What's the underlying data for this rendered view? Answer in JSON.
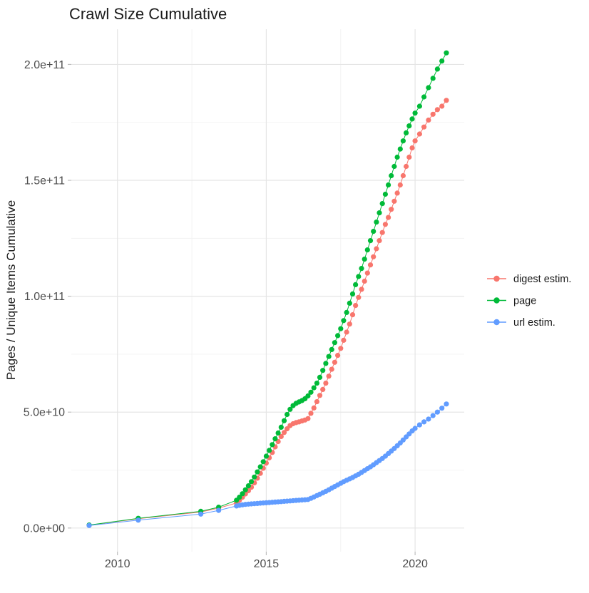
{
  "chart_data": {
    "type": "scatter",
    "title": "Crawl Size Cumulative",
    "xlabel": "",
    "ylabel": "Pages / Unique Items Cumulative",
    "x_ticks": [
      2010,
      2015,
      2020
    ],
    "x_tick_labels": [
      "2010",
      "2015",
      "2020"
    ],
    "x_minor_ticks": [
      2012.5,
      2017.5
    ],
    "y_ticks": [
      0,
      50000000000.0,
      100000000000.0,
      150000000000.0,
      200000000000.0
    ],
    "y_tick_labels": [
      "0.0e+00",
      "5.0e+10",
      "1.0e+11",
      "1.5e+11",
      "2.0e+11"
    ],
    "y_minor_ticks": [
      25000000000.0,
      75000000000.0,
      125000000000.0,
      175000000000.0
    ],
    "xlim": [
      2008.45,
      2021.65
    ],
    "ylim": [
      -10200000000.0,
      215200000000.0
    ],
    "grid": true,
    "legend_position": "right",
    "colors": {
      "grid_major": "#E5E5E5",
      "grid_minor": "#F1F1F1",
      "axis_text": "#4D4D4D",
      "tick_mark": "#BEBEBE",
      "title_text": "#1A1A1A"
    },
    "series": [
      {
        "name": "digest estim.",
        "color": "#F8766D",
        "points": [
          [
            2009.05,
            1200000000.0
          ],
          [
            2010.7,
            4000000000.0
          ],
          [
            2012.8,
            6900000000.0
          ],
          [
            2013.4,
            8600000000.0
          ],
          [
            2014.0,
            10800000000.0
          ],
          [
            2014.1,
            12000000000.0
          ],
          [
            2014.2,
            13300000000.0
          ],
          [
            2014.3,
            14700000000.0
          ],
          [
            2014.4,
            16100000000.0
          ],
          [
            2014.5,
            17600000000.0
          ],
          [
            2014.6,
            19500000000.0
          ],
          [
            2014.7,
            21500000000.0
          ],
          [
            2014.8,
            23600000000.0
          ],
          [
            2014.9,
            25800000000.0
          ],
          [
            2015.0,
            28000000000.0
          ],
          [
            2015.1,
            30300000000.0
          ],
          [
            2015.2,
            32600000000.0
          ],
          [
            2015.3,
            35000000000.0
          ],
          [
            2015.4,
            37300000000.0
          ],
          [
            2015.5,
            39500000000.0
          ],
          [
            2015.6,
            41200000000.0
          ],
          [
            2015.7,
            42800000000.0
          ],
          [
            2015.8,
            44200000000.0
          ],
          [
            2015.9,
            45000000000.0
          ],
          [
            2016.0,
            45500000000.0
          ],
          [
            2016.1,
            45800000000.0
          ],
          [
            2016.2,
            46200000000.0
          ],
          [
            2016.3,
            46600000000.0
          ],
          [
            2016.4,
            47200000000.0
          ],
          [
            2016.5,
            49500000000.0
          ],
          [
            2016.6,
            51800000000.0
          ],
          [
            2016.7,
            54500000000.0
          ],
          [
            2016.8,
            57200000000.0
          ],
          [
            2016.9,
            59800000000.0
          ],
          [
            2017.0,
            62500000000.0
          ],
          [
            2017.1,
            65500000000.0
          ],
          [
            2017.2,
            68500000000.0
          ],
          [
            2017.3,
            71500000000.0
          ],
          [
            2017.4,
            74500000000.0
          ],
          [
            2017.5,
            77500000000.0
          ],
          [
            2017.6,
            81000000000.0
          ],
          [
            2017.7,
            84500000000.0
          ],
          [
            2017.8,
            88000000000.0
          ],
          [
            2017.9,
            92000000000.0
          ],
          [
            2018.0,
            96000000000.0
          ],
          [
            2018.1,
            99500000000.0
          ],
          [
            2018.2,
            103000000000.0
          ],
          [
            2018.3,
            106500000000.0
          ],
          [
            2018.4,
            110000000000.0
          ],
          [
            2018.5,
            113500000000.0
          ],
          [
            2018.6,
            117000000000.0
          ],
          [
            2018.7,
            120500000000.0
          ],
          [
            2018.8,
            124000000000.0
          ],
          [
            2018.9,
            127500000000.0
          ],
          [
            2019.0,
            131000000000.0
          ],
          [
            2019.1,
            134000000000.0
          ],
          [
            2019.2,
            137500000000.0
          ],
          [
            2019.3,
            141000000000.0
          ],
          [
            2019.4,
            144500000000.0
          ],
          [
            2019.5,
            148000000000.0
          ],
          [
            2019.6,
            152000000000.0
          ],
          [
            2019.7,
            156000000000.0
          ],
          [
            2019.8,
            160000000000.0
          ],
          [
            2019.9,
            164000000000.0
          ],
          [
            2020.0,
            167000000000.0
          ],
          [
            2020.15,
            170000000000.0
          ],
          [
            2020.3,
            173000000000.0
          ],
          [
            2020.45,
            176000000000.0
          ],
          [
            2020.6,
            178500000000.0
          ],
          [
            2020.75,
            180500000000.0
          ],
          [
            2020.9,
            182000000000.0
          ],
          [
            2021.05,
            184500000000.0
          ]
        ]
      },
      {
        "name": "page",
        "color": "#00BA38",
        "points": [
          [
            2009.05,
            1300000000.0
          ],
          [
            2010.7,
            4200000000.0
          ],
          [
            2012.8,
            7200000000.0
          ],
          [
            2013.4,
            9000000000.0
          ],
          [
            2014.0,
            12000000000.0
          ],
          [
            2014.1,
            13300000000.0
          ],
          [
            2014.2,
            14800000000.0
          ],
          [
            2014.3,
            16500000000.0
          ],
          [
            2014.4,
            18200000000.0
          ],
          [
            2014.5,
            20000000000.0
          ],
          [
            2014.6,
            22000000000.0
          ],
          [
            2014.7,
            24200000000.0
          ],
          [
            2014.8,
            26400000000.0
          ],
          [
            2014.9,
            28600000000.0
          ],
          [
            2015.0,
            31000000000.0
          ],
          [
            2015.1,
            33500000000.0
          ],
          [
            2015.2,
            36000000000.0
          ],
          [
            2015.3,
            38500000000.0
          ],
          [
            2015.4,
            41000000000.0
          ],
          [
            2015.5,
            43500000000.0
          ],
          [
            2015.6,
            46300000000.0
          ],
          [
            2015.7,
            49000000000.0
          ],
          [
            2015.8,
            51200000000.0
          ],
          [
            2015.9,
            52800000000.0
          ],
          [
            2016.0,
            53800000000.0
          ],
          [
            2016.1,
            54400000000.0
          ],
          [
            2016.2,
            55000000000.0
          ],
          [
            2016.3,
            55800000000.0
          ],
          [
            2016.4,
            57000000000.0
          ],
          [
            2016.5,
            58600000000.0
          ],
          [
            2016.6,
            60500000000.0
          ],
          [
            2016.7,
            62500000000.0
          ],
          [
            2016.8,
            65000000000.0
          ],
          [
            2016.9,
            68000000000.0
          ],
          [
            2017.0,
            71000000000.0
          ],
          [
            2017.1,
            74000000000.0
          ],
          [
            2017.2,
            77000000000.0
          ],
          [
            2017.3,
            80000000000.0
          ],
          [
            2017.4,
            83000000000.0
          ],
          [
            2017.5,
            86000000000.0
          ],
          [
            2017.6,
            89500000000.0
          ],
          [
            2017.7,
            93000000000.0
          ],
          [
            2017.8,
            97000000000.0
          ],
          [
            2017.9,
            101000000000.0
          ],
          [
            2018.0,
            105000000000.0
          ],
          [
            2018.1,
            108500000000.0
          ],
          [
            2018.2,
            112000000000.0
          ],
          [
            2018.3,
            116000000000.0
          ],
          [
            2018.4,
            120000000000.0
          ],
          [
            2018.5,
            124000000000.0
          ],
          [
            2018.6,
            128000000000.0
          ],
          [
            2018.7,
            132000000000.0
          ],
          [
            2018.8,
            136000000000.0
          ],
          [
            2018.9,
            140000000000.0
          ],
          [
            2019.0,
            144000000000.0
          ],
          [
            2019.1,
            148000000000.0
          ],
          [
            2019.2,
            152000000000.0
          ],
          [
            2019.3,
            156000000000.0
          ],
          [
            2019.4,
            160000000000.0
          ],
          [
            2019.5,
            163500000000.0
          ],
          [
            2019.6,
            167000000000.0
          ],
          [
            2019.7,
            170500000000.0
          ],
          [
            2019.8,
            173500000000.0
          ],
          [
            2019.9,
            176500000000.0
          ],
          [
            2020.0,
            179000000000.0
          ],
          [
            2020.15,
            182000000000.0
          ],
          [
            2020.3,
            186000000000.0
          ],
          [
            2020.45,
            190000000000.0
          ],
          [
            2020.6,
            194000000000.0
          ],
          [
            2020.75,
            198000000000.0
          ],
          [
            2020.9,
            201500000000.0
          ],
          [
            2021.05,
            205000000000.0
          ]
        ]
      },
      {
        "name": "url estim.",
        "color": "#619CFF",
        "points": [
          [
            2009.05,
            1100000000.0
          ],
          [
            2010.7,
            3400000000.0
          ],
          [
            2012.8,
            6000000000.0
          ],
          [
            2013.4,
            7600000000.0
          ],
          [
            2014.0,
            9500000000.0
          ],
          [
            2014.1,
            9800000000.0
          ],
          [
            2014.2,
            10000000000.0
          ],
          [
            2014.3,
            10200000000.0
          ],
          [
            2014.4,
            10300000000.0
          ],
          [
            2014.5,
            10400000000.0
          ],
          [
            2014.6,
            10500000000.0
          ],
          [
            2014.7,
            10600000000.0
          ],
          [
            2014.8,
            10700000000.0
          ],
          [
            2014.9,
            10800000000.0
          ],
          [
            2015.0,
            10900000000.0
          ],
          [
            2015.1,
            11000000000.0
          ],
          [
            2015.2,
            11100000000.0
          ],
          [
            2015.3,
            11200000000.0
          ],
          [
            2015.4,
            11300000000.0
          ],
          [
            2015.5,
            11400000000.0
          ],
          [
            2015.6,
            11500000000.0
          ],
          [
            2015.7,
            11600000000.0
          ],
          [
            2015.8,
            11700000000.0
          ],
          [
            2015.9,
            11800000000.0
          ],
          [
            2016.0,
            11900000000.0
          ],
          [
            2016.1,
            12000000000.0
          ],
          [
            2016.2,
            12100000000.0
          ],
          [
            2016.3,
            12200000000.0
          ],
          [
            2016.4,
            12300000000.0
          ],
          [
            2016.5,
            12800000000.0
          ],
          [
            2016.6,
            13400000000.0
          ],
          [
            2016.7,
            14000000000.0
          ],
          [
            2016.8,
            14600000000.0
          ],
          [
            2016.9,
            15200000000.0
          ],
          [
            2017.0,
            15800000000.0
          ],
          [
            2017.1,
            16500000000.0
          ],
          [
            2017.2,
            17200000000.0
          ],
          [
            2017.3,
            17900000000.0
          ],
          [
            2017.4,
            18600000000.0
          ],
          [
            2017.5,
            19300000000.0
          ],
          [
            2017.6,
            20000000000.0
          ],
          [
            2017.7,
            20600000000.0
          ],
          [
            2017.8,
            21200000000.0
          ],
          [
            2017.9,
            21800000000.0
          ],
          [
            2018.0,
            22500000000.0
          ],
          [
            2018.1,
            23200000000.0
          ],
          [
            2018.2,
            24000000000.0
          ],
          [
            2018.3,
            24800000000.0
          ],
          [
            2018.4,
            25600000000.0
          ],
          [
            2018.5,
            26400000000.0
          ],
          [
            2018.6,
            27300000000.0
          ],
          [
            2018.7,
            28200000000.0
          ],
          [
            2018.8,
            29100000000.0
          ],
          [
            2018.9,
            30000000000.0
          ],
          [
            2019.0,
            31000000000.0
          ],
          [
            2019.1,
            32100000000.0
          ],
          [
            2019.2,
            33200000000.0
          ],
          [
            2019.3,
            34300000000.0
          ],
          [
            2019.4,
            35500000000.0
          ],
          [
            2019.5,
            36700000000.0
          ],
          [
            2019.6,
            38000000000.0
          ],
          [
            2019.7,
            39300000000.0
          ],
          [
            2019.8,
            40600000000.0
          ],
          [
            2019.9,
            41900000000.0
          ],
          [
            2020.0,
            43000000000.0
          ],
          [
            2020.15,
            44500000000.0
          ],
          [
            2020.3,
            45800000000.0
          ],
          [
            2020.45,
            47000000000.0
          ],
          [
            2020.6,
            48500000000.0
          ],
          [
            2020.75,
            50000000000.0
          ],
          [
            2020.9,
            51700000000.0
          ],
          [
            2021.05,
            53500000000.0
          ]
        ]
      }
    ]
  }
}
